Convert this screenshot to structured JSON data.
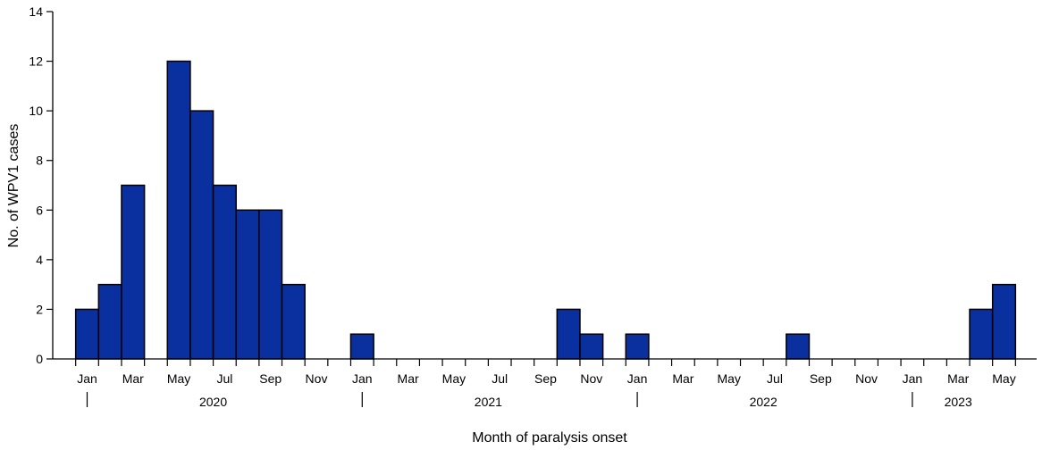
{
  "chart_data": {
    "type": "bar",
    "xlabel": "Month of paralysis onset",
    "ylabel": "No. of WPV1 cases",
    "ylim": [
      0,
      14
    ],
    "yticks": [
      0,
      2,
      4,
      6,
      8,
      10,
      12,
      14
    ],
    "grid": false,
    "bar_color": "#0a2f9e",
    "categories": [
      "Jan 2020",
      "Feb 2020",
      "Mar 2020",
      "Apr 2020",
      "May 2020",
      "Jun 2020",
      "Jul 2020",
      "Aug 2020",
      "Sep 2020",
      "Oct 2020",
      "Nov 2020",
      "Dec 2020",
      "Jan 2021",
      "Feb 2021",
      "Mar 2021",
      "Apr 2021",
      "May 2021",
      "Jun 2021",
      "Jul 2021",
      "Aug 2021",
      "Sep 2021",
      "Oct 2021",
      "Nov 2021",
      "Dec 2021",
      "Jan 2022",
      "Feb 2022",
      "Mar 2022",
      "Apr 2022",
      "May 2022",
      "Jun 2022",
      "Jul 2022",
      "Aug 2022",
      "Sep 2022",
      "Oct 2022",
      "Nov 2022",
      "Dec 2022",
      "Jan 2023",
      "Feb 2023",
      "Mar 2023",
      "Apr 2023",
      "May 2023"
    ],
    "values": [
      2,
      3,
      7,
      0,
      12,
      10,
      7,
      6,
      6,
      3,
      0,
      0,
      1,
      0,
      0,
      0,
      0,
      0,
      0,
      0,
      0,
      2,
      1,
      0,
      1,
      0,
      0,
      0,
      0,
      0,
      0,
      1,
      0,
      0,
      0,
      0,
      0,
      0,
      0,
      2,
      3
    ],
    "month_tick_labels": [
      "Jan",
      "Mar",
      "May",
      "Jul",
      "Sep",
      "Nov",
      "Jan",
      "Mar",
      "May",
      "Jul",
      "Sep",
      "Nov",
      "Jan",
      "Mar",
      "May",
      "Jul",
      "Sep",
      "Nov",
      "Jan",
      "Mar",
      "May"
    ],
    "year_labels": [
      "2020",
      "2021",
      "2022",
      "2023"
    ]
  }
}
